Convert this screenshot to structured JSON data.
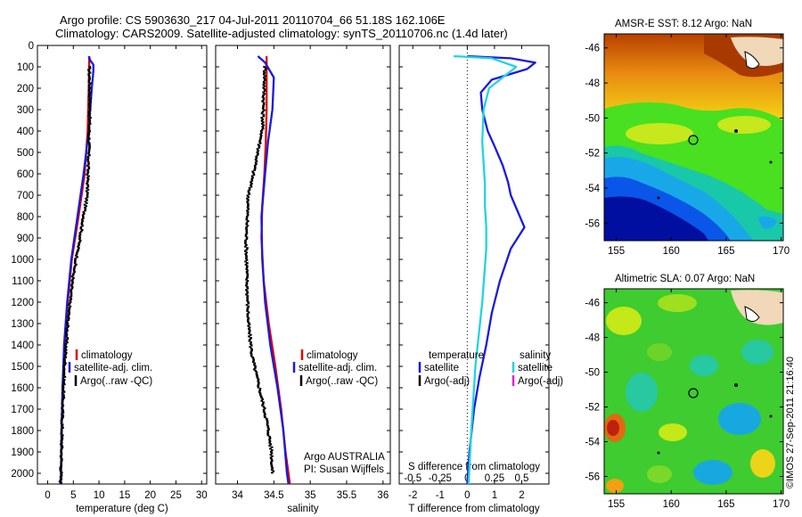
{
  "figure": {
    "title_line1": "Argo profile: CS 5903630_217 04-Jul-2011 20110704_66 51.18S 162.106E",
    "title_line2": "Climatology: CARS2009. Satellite-adjusted climatology: synTS_20110706.nc (1.4d later)",
    "credit": "©IMOS 27-Sep-2011 21:16:40",
    "colors": {
      "climatology": "#e00000",
      "satellite": "#1a1adc",
      "argo": "#000000",
      "satellite_salinity": "#22d3e0",
      "argo_salinity_adj": "#e020e0"
    }
  },
  "chart_data": [
    {
      "type": "line",
      "id": "temperature",
      "xlabel": "temperature (deg C)",
      "ylabel": "",
      "xlim": [
        -2,
        31
      ],
      "ylim": [
        2050,
        0
      ],
      "xticks": [
        0,
        5,
        10,
        15,
        20,
        25,
        30
      ],
      "yticks": [
        0,
        100,
        200,
        300,
        400,
        500,
        600,
        700,
        800,
        900,
        1000,
        1100,
        1200,
        1300,
        1400,
        1500,
        1600,
        1700,
        1800,
        1900,
        2000
      ],
      "legend": [
        "climatology",
        "satellite-adj. clim.",
        "Argo(..raw -QC)"
      ],
      "series": [
        {
          "name": "climatology",
          "x": [
            8.1,
            8.0,
            7.8,
            7.2,
            6.0,
            4.7,
            3.9,
            3.3,
            2.9,
            2.7,
            2.6,
            2.5
          ],
          "y": [
            50,
            200,
            400,
            600,
            800,
            1000,
            1200,
            1400,
            1600,
            1800,
            2000,
            2050
          ]
        },
        {
          "name": "satellite-adj. clim.",
          "x": [
            8.0,
            8.3,
            8.9,
            8.9,
            8.6,
            8.0,
            7.0,
            5.8,
            4.6,
            3.8,
            3.2,
            2.9,
            2.7,
            2.6,
            2.6
          ],
          "y": [
            50,
            70,
            90,
            120,
            200,
            400,
            600,
            800,
            1000,
            1200,
            1400,
            1600,
            1800,
            2000,
            2050
          ]
        },
        {
          "name": "Argo(..raw -QC)",
          "x": [
            8.1,
            8.2,
            8.2,
            8.0,
            7.7,
            6.3,
            4.8,
            3.9,
            3.3,
            2.9,
            2.7,
            2.6,
            2.5
          ],
          "y": [
            100,
            200,
            300,
            500,
            700,
            900,
            1100,
            1300,
            1500,
            1700,
            1900,
            2000,
            2050
          ]
        }
      ],
      "annotations": []
    },
    {
      "type": "line",
      "id": "salinity",
      "xlabel": "salinity",
      "ylabel": "",
      "xlim": [
        33.7,
        36.1
      ],
      "ylim": [
        2050,
        0
      ],
      "xticks": [
        34,
        34.5,
        35,
        35.5,
        36
      ],
      "xticklabels": [
        "34",
        "34.5",
        "35",
        "35.5",
        "36"
      ],
      "yticks": [
        0,
        100,
        200,
        300,
        400,
        500,
        600,
        700,
        800,
        900,
        1000,
        1100,
        1200,
        1300,
        1400,
        1500,
        1600,
        1700,
        1800,
        1900,
        2000
      ],
      "legend": [
        "climatology",
        "satellite-adj. clim.",
        "Argo(..raw -QC)"
      ],
      "series": [
        {
          "name": "climatology",
          "x": [
            34.4,
            34.4,
            34.4,
            34.39,
            34.37,
            34.34,
            34.33,
            34.36,
            34.43,
            34.52,
            34.6,
            34.66,
            34.7,
            34.72
          ],
          "y": [
            50,
            200,
            300,
            450,
            600,
            750,
            900,
            1100,
            1300,
            1500,
            1700,
            1900,
            2000,
            2050
          ]
        },
        {
          "name": "satellite-adj. clim.",
          "x": [
            34.28,
            34.38,
            34.5,
            34.48,
            34.42,
            34.38,
            34.33,
            34.34,
            34.38,
            34.45,
            34.55,
            34.63,
            34.68,
            34.7
          ],
          "y": [
            50,
            80,
            150,
            300,
            450,
            600,
            800,
            1000,
            1200,
            1400,
            1600,
            1800,
            2000,
            2050
          ]
        },
        {
          "name": "Argo(..raw -QC)",
          "x": [
            34.38,
            34.36,
            34.34,
            34.25,
            34.15,
            34.12,
            34.13,
            34.15,
            34.2,
            34.3,
            34.4,
            34.47,
            34.48
          ],
          "y": [
            100,
            250,
            400,
            550,
            700,
            900,
            1100,
            1300,
            1450,
            1600,
            1750,
            1900,
            2000
          ]
        }
      ],
      "annotations": [
        "Argo AUSTRALIA",
        "PI: Susan Wijffels"
      ]
    },
    {
      "type": "line",
      "id": "differences",
      "xlabel": "T difference from climatology",
      "xlabel_top": "S difference from climatology",
      "ylabel": "",
      "xlim": [
        -2.5,
        3
      ],
      "ylim": [
        2050,
        0
      ],
      "xticks": [
        -2,
        -1,
        0,
        1,
        2
      ],
      "xticks_top": [
        -0.5,
        -0.25,
        0,
        0.25,
        0.5
      ],
      "yticks": [
        0,
        100,
        200,
        300,
        400,
        500,
        600,
        700,
        800,
        900,
        1000,
        1100,
        1200,
        1300,
        1400,
        1500,
        1600,
        1700,
        1800,
        1900,
        2000
      ],
      "legend_headers": [
        "temperature",
        "salinity"
      ],
      "legend_temperature": [
        "satellite",
        "Argo(-adj)"
      ],
      "legend_salinity": [
        "satellite",
        "Argo(-adj)"
      ],
      "series": [
        {
          "name": "temperature satellite",
          "x": [
            0,
            1.6,
            2.5,
            2.2,
            0.9,
            0.5,
            0.55,
            0.75,
            1.0,
            1.3,
            1.5,
            1.6,
            2.1,
            1.6,
            1.2,
            0.9,
            0.7,
            0.45,
            0.25,
            0.08,
            0
          ],
          "y": [
            50,
            60,
            80,
            110,
            160,
            220,
            300,
            400,
            470,
            560,
            640,
            700,
            850,
            950,
            1100,
            1250,
            1400,
            1550,
            1700,
            1900,
            2050
          ]
        },
        {
          "name": "salinity satellite",
          "x": [
            -0.5,
            0.9,
            1.8,
            0.8,
            0.6,
            0.55,
            0.6,
            0.65,
            0.65,
            0.7,
            0.7,
            0.55,
            0.3,
            0.15,
            0.05
          ],
          "y": [
            50,
            60,
            100,
            200,
            300,
            450,
            550,
            650,
            750,
            850,
            950,
            1200,
            1500,
            1800,
            2050
          ]
        }
      ],
      "annotations": []
    }
  ],
  "maps": [
    {
      "title": "AMSR-E SST: 8.12 Argo: NaN",
      "yticks": [
        -46,
        -48,
        -50,
        -52,
        -54,
        -56
      ],
      "xticks": [
        155,
        160,
        165,
        170
      ]
    },
    {
      "title": "Altimetric SLA: 0.07 Argo: NaN",
      "yticks": [
        -46,
        -48,
        -50,
        -52,
        -54,
        -56
      ],
      "xticks": [
        155,
        160,
        165,
        170
      ]
    }
  ]
}
